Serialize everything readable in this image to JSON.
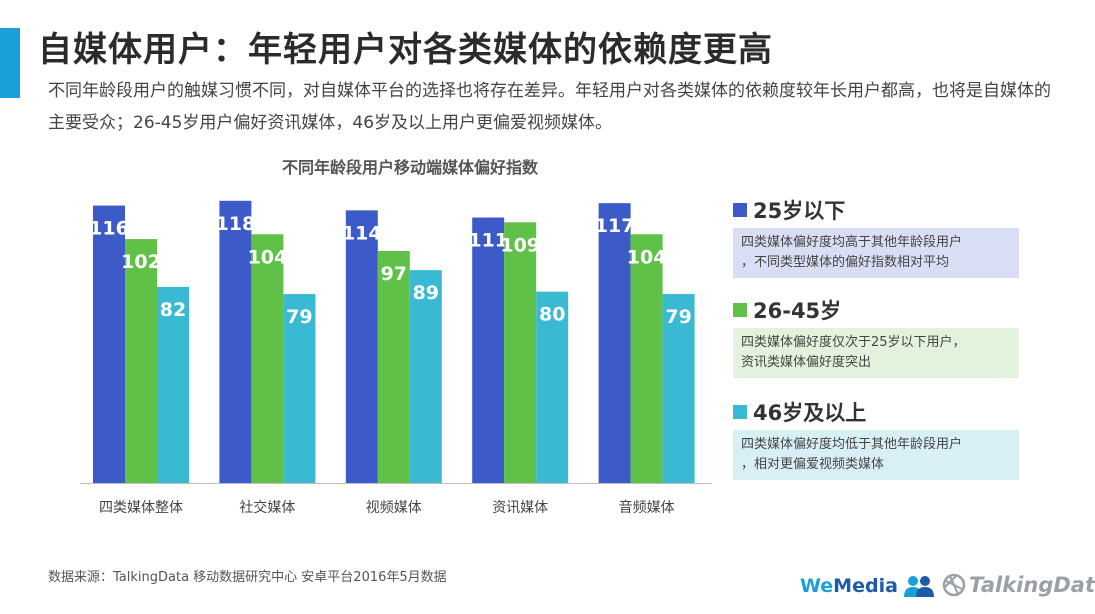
{
  "header": {
    "title": "自媒体用户：年轻用户对各类媒体的依赖度更高",
    "subtitle": "不同年龄段用户的触媒习惯不同，对自媒体平台的选择也将存在差异。年轻用户对各类媒体的依赖度较年长用户都高，也将是自媒体的主要受众；26-45岁用户偏好资讯媒体，46岁及以上用户更偏爱视频媒体。"
  },
  "chart_data": {
    "type": "bar",
    "title": "不同年龄段用户移动端媒体偏好指数",
    "categories": [
      "四类媒体整体",
      "社交媒体",
      "视频媒体",
      "资讯媒体",
      "音频媒体"
    ],
    "series": [
      {
        "name": "25岁以下",
        "color": "#3c5bc8",
        "values": [
          116,
          118,
          114,
          111,
          117
        ]
      },
      {
        "name": "26-45岁",
        "color": "#5fc147",
        "values": [
          102,
          104,
          97,
          109,
          104
        ]
      },
      {
        "name": "46岁及以上",
        "color": "#39b9d2",
        "values": [
          82,
          79,
          89,
          80,
          79
        ]
      }
    ],
    "ylim": [
      0,
      120
    ],
    "grid": false,
    "legend_position": "right"
  },
  "legend": [
    {
      "label": "25岁以下",
      "color": "#3c5bc8",
      "note_bg": "#d9def5",
      "note_lines": [
        "四类媒体偏好度均高于其他年龄段用户",
        "，不同类型媒体的偏好指数相对平均"
      ]
    },
    {
      "label": "26-45岁",
      "color": "#5fc147",
      "note_bg": "#e2f2dc",
      "note_lines": [
        "四类媒体偏好度仅次于25岁以下用户，",
        "资讯类媒体偏好度突出"
      ]
    },
    {
      "label": "46岁及以上",
      "color": "#39b9d2",
      "note_bg": "#d8eff5",
      "note_lines": [
        "四类媒体偏好度均低于其他年龄段用户",
        "，相对更偏爱视频类媒体"
      ]
    }
  ],
  "footer": {
    "source": "数据来源：TalkingData 移动数据研究中心 安卓平台2016年5月数据",
    "logo_wemedia_we": "We",
    "logo_wemedia_media": "Media",
    "logo_wemedia_icon": "people-icon",
    "logo_talkingdata": "TalkingData",
    "logo_talkingdata_icon": "globe-icon"
  }
}
